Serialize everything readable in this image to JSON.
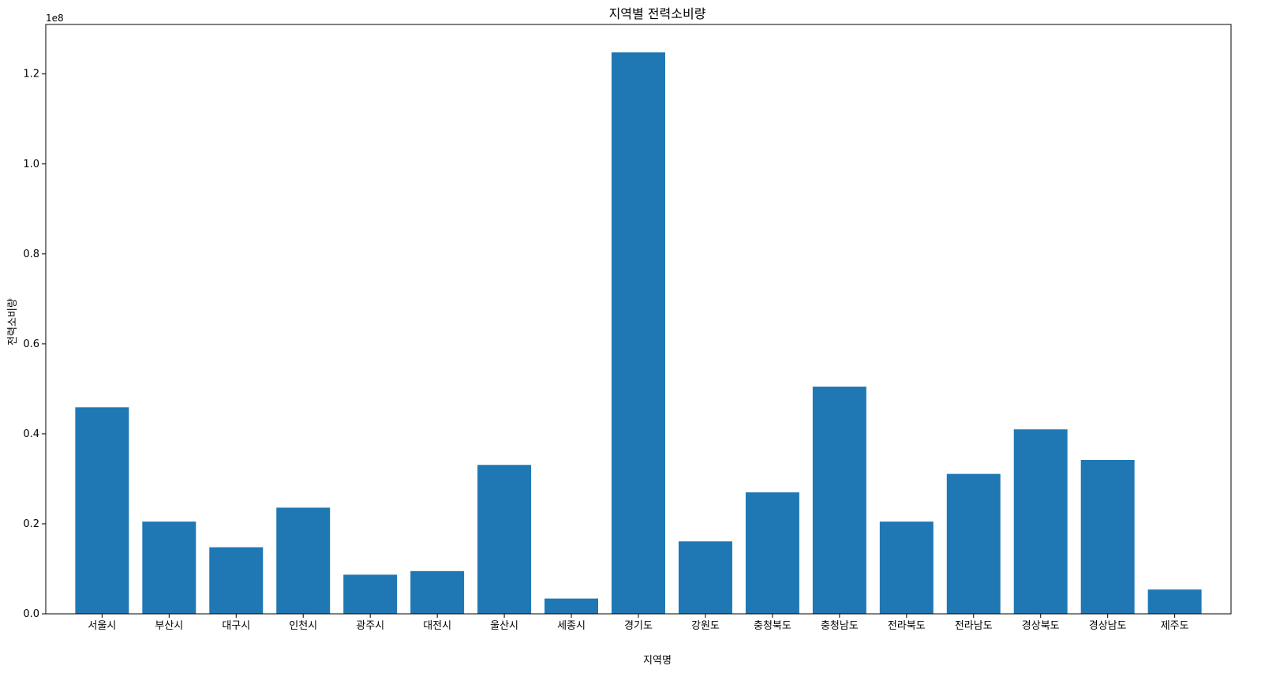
{
  "chart_data": {
    "type": "bar",
    "title": "지역별 전력소비량",
    "xlabel": "지역명",
    "ylabel": "전력소비량",
    "y_offset_label": "1e8",
    "ylim": [
      0,
      1.31
    ],
    "yticks": [
      0.0,
      0.2,
      0.4,
      0.6,
      0.8,
      1.0,
      1.2
    ],
    "ytick_labels": [
      "0.0",
      "0.2",
      "0.4",
      "0.6",
      "0.8",
      "1.0",
      "1.2"
    ],
    "categories": [
      "서울시",
      "부산시",
      "대구시",
      "인천시",
      "광주시",
      "대전시",
      "울산시",
      "세종시",
      "경기도",
      "강원도",
      "충청북도",
      "충청남도",
      "전라북도",
      "전라남도",
      "경상북도",
      "경상남도",
      "제주도"
    ],
    "values": [
      0.459,
      0.205,
      0.148,
      0.236,
      0.087,
      0.095,
      0.331,
      0.034,
      1.248,
      0.161,
      0.27,
      0.505,
      0.205,
      0.311,
      0.41,
      0.342,
      0.054
    ],
    "grid": false,
    "colors": {
      "bar": "#1f77b4"
    }
  }
}
